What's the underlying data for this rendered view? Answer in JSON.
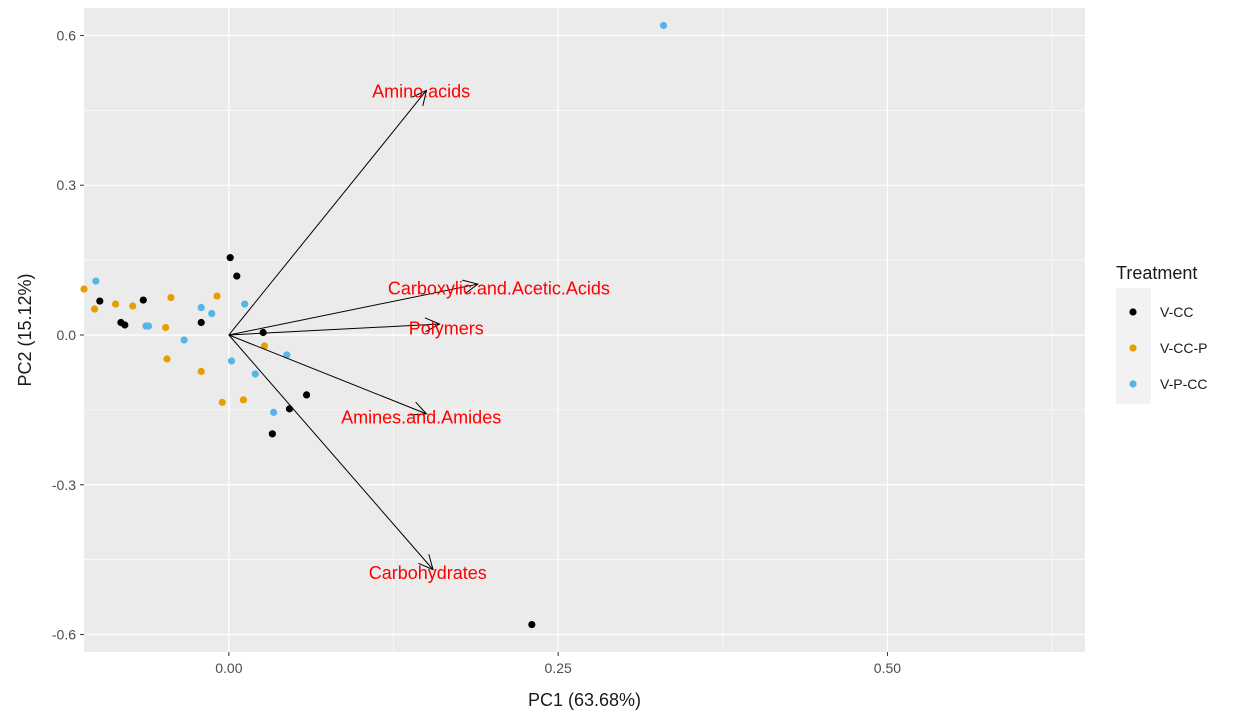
{
  "chart_data": {
    "type": "scatter",
    "subtype": "pca-biplot",
    "xlabel": "PC1 (63.68%)",
    "ylabel": "PC2 (15.12%)",
    "xlim": [
      -0.11,
      0.65
    ],
    "ylim": [
      -0.635,
      0.655
    ],
    "x_ticks": [
      0.0,
      0.25,
      0.5
    ],
    "x_tick_labels": [
      "0.00",
      "0.25",
      "0.50"
    ],
    "y_ticks": [
      -0.6,
      -0.3,
      0.0,
      0.3,
      0.6
    ],
    "y_tick_labels": [
      "-0.6",
      "-0.3",
      "0.0",
      "0.3",
      "0.6"
    ],
    "grid": true,
    "background": "#ebebeb",
    "legend": {
      "title": "Treatment",
      "position": "right"
    },
    "series": [
      {
        "name": "V-CC",
        "color": "#000000",
        "points": [
          [
            0.001,
            0.155
          ],
          [
            0.006,
            0.118
          ],
          [
            -0.065,
            0.07
          ],
          [
            -0.098,
            0.068
          ],
          [
            -0.082,
            0.025
          ],
          [
            -0.079,
            0.02
          ],
          [
            -0.021,
            0.025
          ],
          [
            0.026,
            0.005
          ],
          [
            0.059,
            -0.12
          ],
          [
            0.046,
            -0.148
          ],
          [
            0.033,
            -0.198
          ],
          [
            0.23,
            -0.58
          ]
        ]
      },
      {
        "name": "V-CC-P",
        "color": "#e69f00",
        "points": [
          [
            -0.11,
            0.092
          ],
          [
            -0.102,
            0.052
          ],
          [
            -0.086,
            0.062
          ],
          [
            -0.073,
            0.058
          ],
          [
            -0.044,
            0.075
          ],
          [
            -0.009,
            0.078
          ],
          [
            -0.048,
            0.015
          ],
          [
            -0.047,
            -0.048
          ],
          [
            -0.021,
            -0.073
          ],
          [
            -0.005,
            -0.135
          ],
          [
            0.011,
            -0.13
          ],
          [
            0.027,
            -0.022
          ]
        ]
      },
      {
        "name": "V-P-CC",
        "color": "#56b4e9",
        "points": [
          [
            -0.101,
            0.108
          ],
          [
            -0.063,
            0.018
          ],
          [
            -0.061,
            0.018
          ],
          [
            -0.034,
            -0.01
          ],
          [
            -0.021,
            0.055
          ],
          [
            -0.013,
            0.043
          ],
          [
            0.012,
            0.062
          ],
          [
            0.002,
            -0.052
          ],
          [
            0.02,
            -0.078
          ],
          [
            0.034,
            -0.155
          ],
          [
            0.044,
            -0.04
          ],
          [
            0.33,
            0.62
          ]
        ]
      }
    ],
    "loadings": [
      {
        "label": "Amino.acids",
        "x": 0.15,
        "y": 0.49,
        "label_x": 0.146,
        "label_y": 0.49
      },
      {
        "label": "Carboxylic.and.Acetic.Acids",
        "x": 0.189,
        "y": 0.102,
        "label_x": 0.205,
        "label_y": 0.095
      },
      {
        "label": "Polymers",
        "x": 0.16,
        "y": 0.022,
        "label_x": 0.165,
        "label_y": 0.015
      },
      {
        "label": "Amines.and.Amides",
        "x": 0.15,
        "y": -0.158,
        "label_x": 0.146,
        "label_y": -0.163
      },
      {
        "label": "Carbohydrates",
        "x": 0.155,
        "y": -0.47,
        "label_x": 0.151,
        "label_y": -0.475
      }
    ],
    "loading_color": "#ff0000",
    "arrow_color": "#000000"
  }
}
